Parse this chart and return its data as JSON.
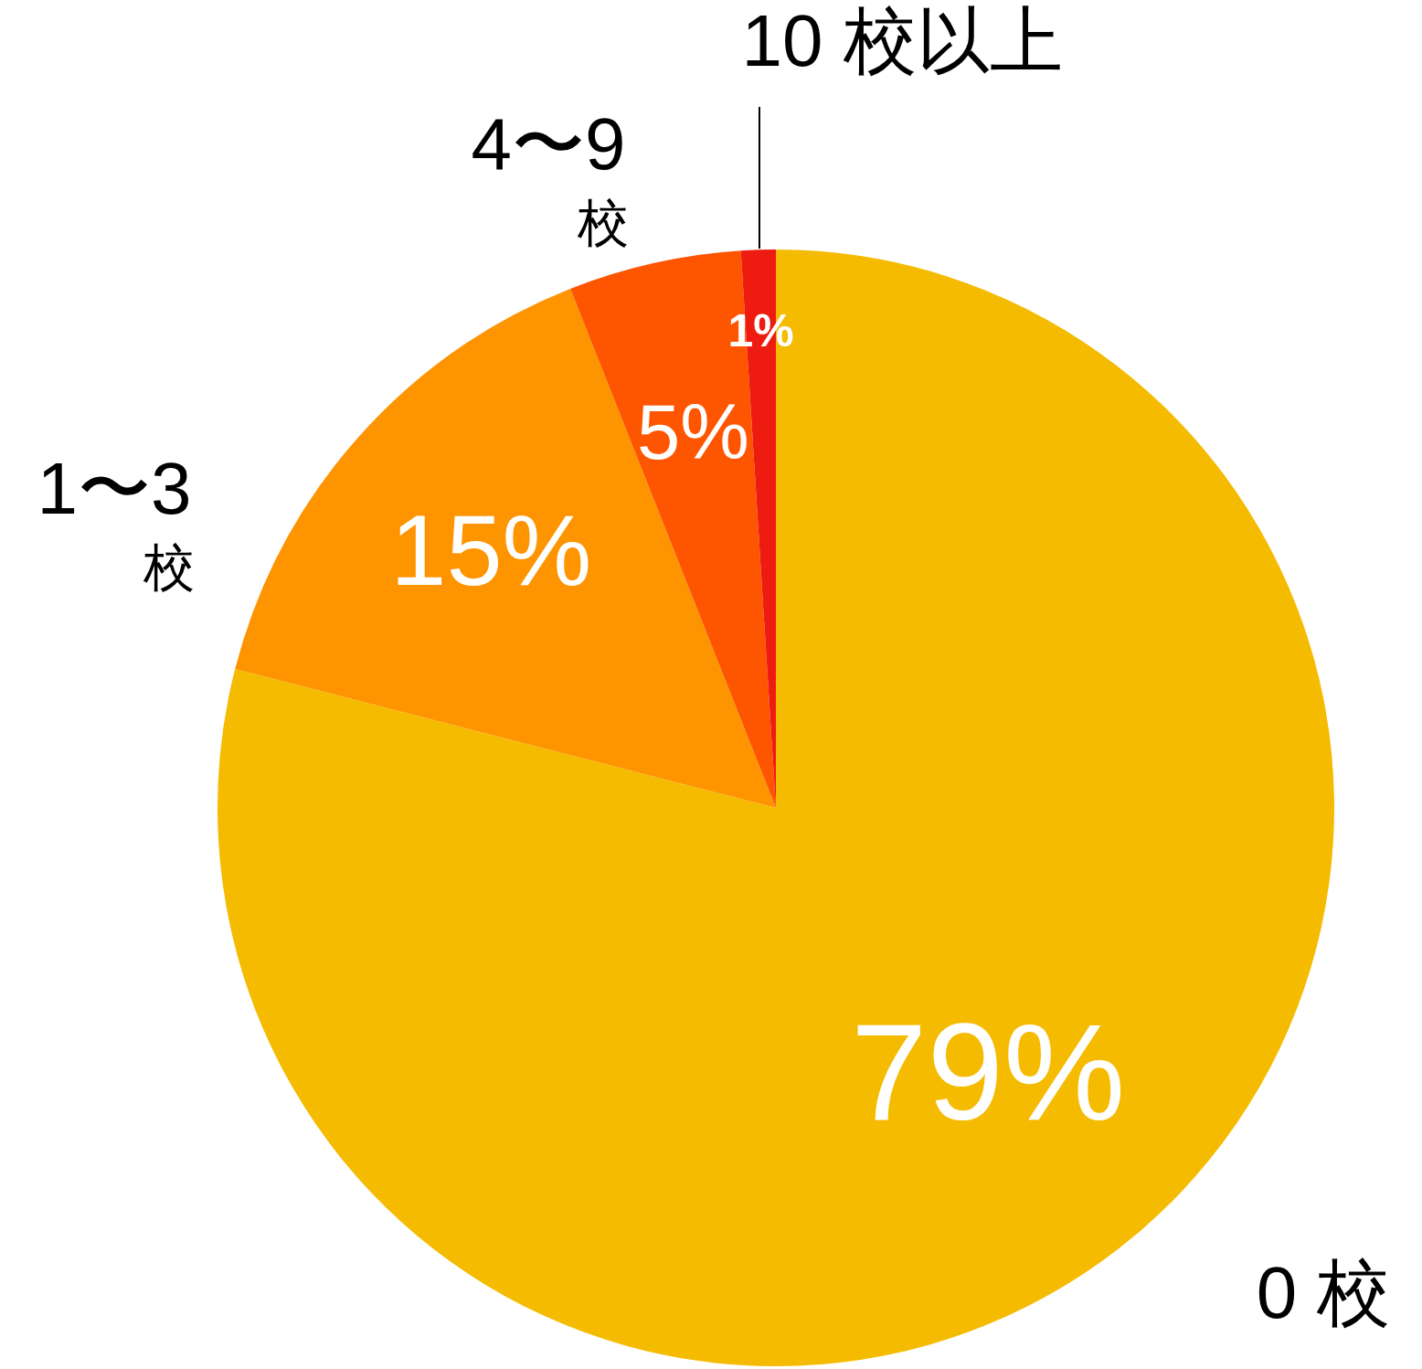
{
  "chart_data": {
    "type": "pie",
    "categories": [
      "0 校",
      "1〜3\n校",
      "4〜9\n校",
      "10 校以上"
    ],
    "values": [
      79,
      15,
      5,
      1
    ],
    "colors": [
      "#f5bb00",
      "#fd9400",
      "#fe5500",
      "#ee1c10"
    ],
    "value_labels": [
      "79%",
      "15%",
      "5%",
      "1%"
    ],
    "legend": false
  }
}
